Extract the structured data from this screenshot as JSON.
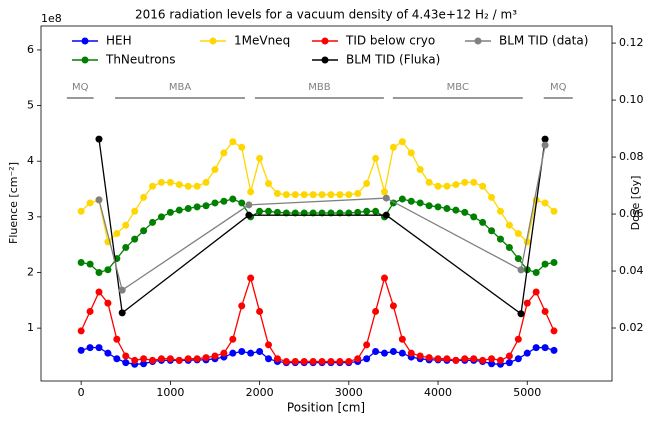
{
  "chart_data": {
    "type": "line",
    "title": "2016 radiation levels for a vacuum density of 4.43e+12 H₂ / m³",
    "xlabel": "Position [cm]",
    "ylabel": "Fluence [cm⁻²]",
    "y2label": "Dose [Gy]",
    "y_offset": "1e8",
    "xlim": [
      -450,
      5950
    ],
    "xticks": [
      0,
      1000,
      2000,
      3000,
      4000,
      5000
    ],
    "ylim": [
      0.05,
      6.43
    ],
    "yticks": [
      1,
      2,
      3,
      4,
      5,
      6
    ],
    "y2lim": [
      0.0014,
      0.126
    ],
    "y2ticks": [
      0.02,
      0.04,
      0.06,
      0.08,
      {
        "value": 0.1,
        "label": "0.10"
      },
      0.12
    ],
    "sections": [
      {
        "label": "MQ",
        "start": -160,
        "end": 140
      },
      {
        "label": "MBA",
        "start": 380,
        "end": 1836
      },
      {
        "label": "MBB",
        "start": 1948,
        "end": 3393
      },
      {
        "label": "MBC",
        "start": 3494,
        "end": 4950
      },
      {
        "label": "MQ",
        "start": 5185,
        "end": 5510
      }
    ],
    "series": [
      {
        "name": "HEH",
        "color": "#0000ff",
        "x": [
          0,
          100,
          200,
          300,
          400,
          500,
          600,
          700,
          800,
          900,
          1000,
          1100,
          1200,
          1300,
          1400,
          1500,
          1600,
          1700,
          1800,
          1900,
          2000,
          2100,
          2200,
          2300,
          2400,
          2500,
          2600,
          2700,
          2800,
          2900,
          3000,
          3100,
          3200,
          3300,
          3400,
          3500,
          3600,
          3700,
          3800,
          3900,
          4000,
          4100,
          4200,
          4300,
          4400,
          4500,
          4600,
          4700,
          4800,
          4900,
          5000,
          5100,
          5200,
          5300
        ],
        "values": [
          0.6,
          0.65,
          0.65,
          0.55,
          0.45,
          0.38,
          0.35,
          0.36,
          0.4,
          0.42,
          0.42,
          0.42,
          0.42,
          0.43,
          0.43,
          0.45,
          0.48,
          0.55,
          0.58,
          0.55,
          0.58,
          0.45,
          0.4,
          0.38,
          0.38,
          0.38,
          0.38,
          0.38,
          0.38,
          0.38,
          0.38,
          0.4,
          0.45,
          0.58,
          0.55,
          0.58,
          0.55,
          0.48,
          0.45,
          0.43,
          0.43,
          0.42,
          0.42,
          0.42,
          0.42,
          0.4,
          0.36,
          0.35,
          0.38,
          0.45,
          0.55,
          0.65,
          0.65,
          0.6
        ]
      },
      {
        "name": "ThNeutrons",
        "color": "#008000",
        "x": [
          0,
          100,
          200,
          300,
          400,
          500,
          600,
          700,
          800,
          900,
          1000,
          1100,
          1200,
          1300,
          1400,
          1500,
          1600,
          1700,
          1800,
          1900,
          2000,
          2100,
          2200,
          2300,
          2400,
          2500,
          2600,
          2700,
          2800,
          2900,
          3000,
          3100,
          3200,
          3300,
          3400,
          3500,
          3600,
          3700,
          3800,
          3900,
          4000,
          4100,
          4200,
          4300,
          4400,
          4500,
          4600,
          4700,
          4800,
          4900,
          5000,
          5100,
          5200,
          5300
        ],
        "values": [
          2.18,
          2.15,
          2.0,
          2.05,
          2.25,
          2.45,
          2.6,
          2.75,
          2.9,
          3.0,
          3.08,
          3.12,
          3.15,
          3.18,
          3.2,
          3.25,
          3.28,
          3.32,
          3.25,
          3.0,
          3.1,
          3.1,
          3.08,
          3.07,
          3.07,
          3.07,
          3.07,
          3.07,
          3.07,
          3.07,
          3.07,
          3.08,
          3.1,
          3.1,
          3.0,
          3.25,
          3.32,
          3.28,
          3.25,
          3.2,
          3.18,
          3.15,
          3.12,
          3.08,
          3.0,
          2.9,
          2.75,
          2.6,
          2.45,
          2.25,
          2.05,
          2.0,
          2.15,
          2.18
        ]
      },
      {
        "name": "1MeVneq",
        "color": "#ffd700",
        "x": [
          0,
          100,
          200,
          300,
          400,
          500,
          600,
          700,
          800,
          900,
          1000,
          1100,
          1200,
          1300,
          1400,
          1500,
          1600,
          1700,
          1800,
          1900,
          2000,
          2100,
          2200,
          2300,
          2400,
          2500,
          2600,
          2700,
          2800,
          2900,
          3000,
          3100,
          3200,
          3300,
          3400,
          3500,
          3600,
          3700,
          3800,
          3900,
          4000,
          4100,
          4200,
          4300,
          4400,
          4500,
          4600,
          4700,
          4800,
          4900,
          5000,
          5100,
          5200,
          5300
        ],
        "values": [
          3.1,
          3.25,
          3.3,
          2.55,
          2.7,
          2.85,
          3.1,
          3.35,
          3.55,
          3.62,
          3.62,
          3.58,
          3.55,
          3.55,
          3.62,
          3.85,
          4.15,
          4.35,
          4.25,
          3.45,
          4.05,
          3.6,
          3.42,
          3.4,
          3.4,
          3.4,
          3.4,
          3.4,
          3.4,
          3.4,
          3.4,
          3.42,
          3.6,
          4.05,
          3.45,
          4.25,
          4.35,
          4.15,
          3.85,
          3.62,
          3.55,
          3.55,
          3.58,
          3.62,
          3.62,
          3.55,
          3.35,
          3.1,
          2.85,
          2.7,
          2.55,
          3.3,
          3.25,
          3.1
        ]
      },
      {
        "name": "TID below cryo",
        "color": "#ff0000",
        "x": [
          0,
          100,
          200,
          300,
          400,
          500,
          600,
          700,
          800,
          900,
          1000,
          1100,
          1200,
          1300,
          1400,
          1500,
          1600,
          1700,
          1800,
          1900,
          2000,
          2100,
          2200,
          2300,
          2400,
          2500,
          2600,
          2700,
          2800,
          2900,
          3000,
          3100,
          3200,
          3300,
          3400,
          3500,
          3600,
          3700,
          3800,
          3900,
          4000,
          4100,
          4200,
          4300,
          4400,
          4500,
          4600,
          4700,
          4800,
          4900,
          5000,
          5100,
          5200,
          5300
        ],
        "values": [
          0.95,
          1.3,
          1.65,
          1.45,
          0.8,
          0.5,
          0.42,
          0.45,
          0.42,
          0.45,
          0.45,
          0.42,
          0.45,
          0.45,
          0.47,
          0.5,
          0.55,
          0.8,
          1.4,
          1.9,
          1.3,
          0.7,
          0.45,
          0.4,
          0.4,
          0.4,
          0.4,
          0.4,
          0.4,
          0.4,
          0.4,
          0.45,
          0.7,
          1.3,
          1.9,
          1.4,
          0.8,
          0.55,
          0.5,
          0.47,
          0.45,
          0.45,
          0.42,
          0.45,
          0.45,
          0.42,
          0.45,
          0.42,
          0.5,
          0.8,
          1.45,
          1.65,
          1.3,
          0.95
        ]
      },
      {
        "name": "BLM TID (Fluka)",
        "color": "#000000",
        "axis": "y2",
        "x": [
          200,
          460,
          1880,
          3420,
          4930,
          5200
        ],
        "values": [
          0.0863,
          0.0253,
          0.0596,
          0.0596,
          0.025,
          0.0863
        ]
      },
      {
        "name": "BLM TID (data)",
        "color": "#808080",
        "axis": "y2",
        "x": [
          200,
          460,
          1880,
          3420,
          4930,
          5200
        ],
        "values": [
          0.065,
          0.0333,
          0.0632,
          0.0656,
          0.0404,
          0.0842
        ]
      }
    ]
  }
}
